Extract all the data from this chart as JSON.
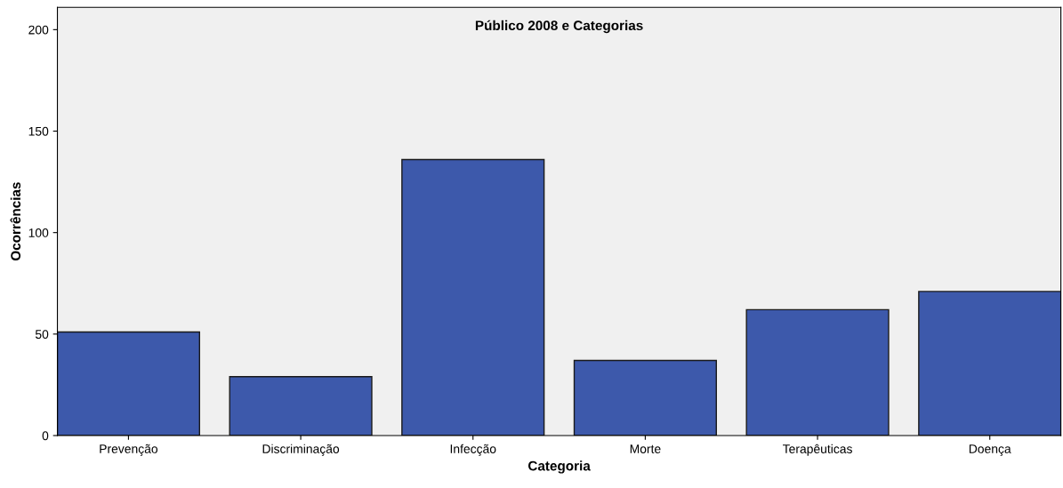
{
  "chart_data": {
    "type": "bar",
    "title": "Público 2008 e Categorias",
    "xlabel": "Categoria",
    "ylabel": "Ocorrências",
    "categories": [
      "Prevenção",
      "Discriminação",
      "Infecção",
      "Morte",
      "Terapêuticas",
      "Doença"
    ],
    "values": [
      51,
      29,
      136,
      37,
      62,
      71
    ],
    "color": "#3d59ab",
    "ylim": [
      0,
      211
    ],
    "yticks": [
      0,
      50,
      100,
      150,
      200
    ],
    "grid": false,
    "legend": false
  }
}
